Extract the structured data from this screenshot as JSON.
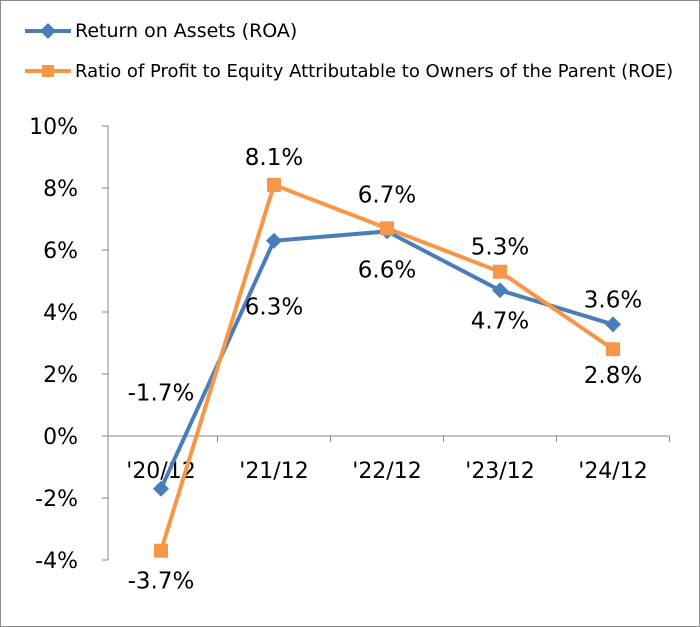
{
  "chart_data": {
    "type": "line",
    "categories": [
      "'20/12",
      "'21/12",
      "'22/12",
      "'23/12",
      "'24/12"
    ],
    "series": [
      {
        "name": "Return on Assets (ROA)",
        "color": "#4a7ebb",
        "marker": "diamond",
        "values": [
          -1.7,
          6.3,
          6.6,
          4.7,
          3.6
        ],
        "labels": [
          "-1.7%",
          "6.3%",
          "6.6%",
          "4.7%",
          "3.6%"
        ]
      },
      {
        "name": "Ratio of Profit to Equity Attributable to Owners of the Parent (ROE)",
        "color": "#f79646",
        "marker": "square",
        "values": [
          -3.7,
          8.1,
          6.7,
          5.3,
          2.8
        ],
        "labels": [
          "-3.7%",
          "8.1%",
          "6.7%",
          "5.3%",
          "2.8%"
        ]
      }
    ],
    "y_ticks": [
      "-4%",
      "-2%",
      "0%",
      "2%",
      "4%",
      "6%",
      "8%",
      "10%"
    ],
    "y_tick_values": [
      -4,
      -2,
      0,
      2,
      4,
      6,
      8,
      10
    ],
    "ylim": [
      -4,
      10
    ],
    "grid": false,
    "legend_position": "top-left"
  }
}
